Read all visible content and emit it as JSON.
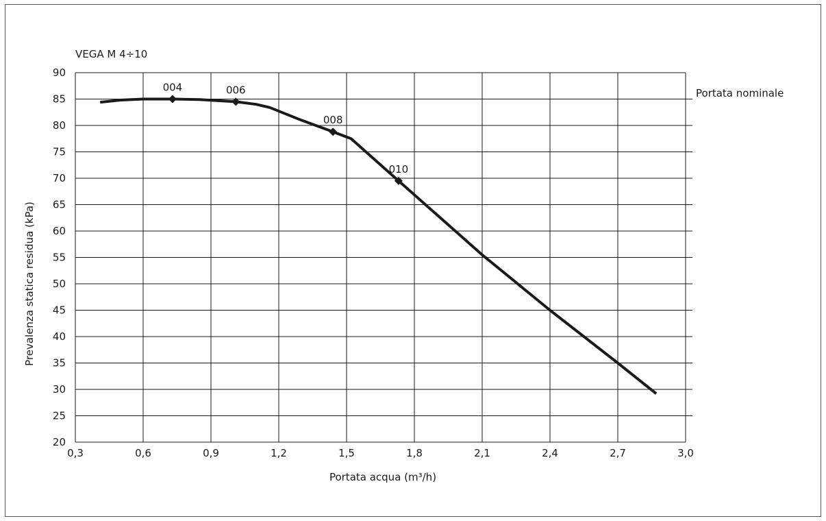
{
  "chart_data": {
    "type": "line",
    "title": "VEGA M 4÷10",
    "xlabel": "Portata acqua (m³/h)",
    "ylabel": "Prevalenza statica residua (kPa)",
    "legend_text": "Portata nominale",
    "xlim": [
      0.3,
      3.0
    ],
    "ylim": [
      20,
      90
    ],
    "grid": true,
    "x_ticks": [
      "0,3",
      "0,6",
      "0,9",
      "1,2",
      "1,5",
      "1,8",
      "2,1",
      "2,4",
      "2,7",
      "3,0"
    ],
    "y_ticks": [
      "20",
      "25",
      "30",
      "35",
      "40",
      "45",
      "50",
      "55",
      "60",
      "65",
      "70",
      "75",
      "80",
      "85",
      "90"
    ],
    "series": [
      {
        "x": [
          0.41,
          0.5,
          0.6,
          0.73,
          0.85,
          1.01,
          1.1,
          1.16,
          1.3,
          1.44,
          1.52,
          1.73,
          2.1,
          2.4,
          2.7,
          2.87
        ],
        "y": [
          84.4,
          84.8,
          85.0,
          85.0,
          84.9,
          84.5,
          84.0,
          83.4,
          81.0,
          78.8,
          77.5,
          69.5,
          55.5,
          45.0,
          35.0,
          29.2
        ]
      }
    ],
    "markers": [
      {
        "label": "004",
        "x": 0.73,
        "y": 85.0
      },
      {
        "label": "006",
        "x": 1.01,
        "y": 84.5
      },
      {
        "label": "008",
        "x": 1.44,
        "y": 78.8
      },
      {
        "label": "010",
        "x": 1.73,
        "y": 69.5
      }
    ],
    "colors": {
      "line": "#1a1a1a",
      "grid": "#1a1a1a"
    }
  }
}
